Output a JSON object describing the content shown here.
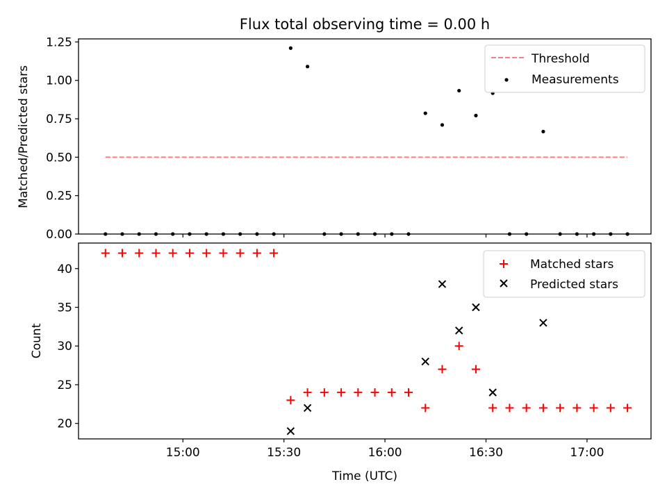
{
  "figure": {
    "title": "Flux total observing time = 0.00 h",
    "xlabel": "Time (UTC)",
    "xticks": [
      {
        "t": 900,
        "label": "15:00"
      },
      {
        "t": 930,
        "label": "15:30"
      },
      {
        "t": 960,
        "label": "16:00"
      },
      {
        "t": 990,
        "label": "16:30"
      },
      {
        "t": 1020,
        "label": "17:00"
      }
    ],
    "xlim": [
      869,
      1039
    ]
  },
  "chart_data": [
    {
      "type": "scatter",
      "ylabel": "Matched/Predicted stars",
      "ylim": [
        0,
        1.27
      ],
      "yticks": [
        "0.00",
        "0.25",
        "0.50",
        "0.75",
        "1.00",
        "1.25"
      ],
      "legend_position": "top-right",
      "threshold": {
        "name": "Threshold",
        "value": 0.5,
        "x_range": [
          877,
          1032
        ],
        "color": "#ff7f7f"
      },
      "series": [
        {
          "name": "Measurements",
          "color": "#000000",
          "points": [
            [
              877,
              0
            ],
            [
              882,
              0
            ],
            [
              887,
              0
            ],
            [
              892,
              0
            ],
            [
              897,
              0
            ],
            [
              902,
              0
            ],
            [
              907,
              0
            ],
            [
              912,
              0
            ],
            [
              917,
              0
            ],
            [
              922,
              0
            ],
            [
              927,
              0
            ],
            [
              932,
              1.21
            ],
            [
              937,
              1.09
            ],
            [
              942,
              0
            ],
            [
              947,
              0
            ],
            [
              952,
              0
            ],
            [
              957,
              0
            ],
            [
              962,
              0
            ],
            [
              967,
              0
            ],
            [
              972,
              0.786
            ],
            [
              977,
              0.71
            ],
            [
              982,
              0.933
            ],
            [
              987,
              0.771
            ],
            [
              992,
              0.917
            ],
            [
              997,
              0
            ],
            [
              1002,
              0
            ],
            [
              1007,
              0.667
            ],
            [
              1012,
              0
            ],
            [
              1017,
              0
            ],
            [
              1022,
              0
            ],
            [
              1027,
              0
            ],
            [
              1032,
              0
            ]
          ]
        }
      ]
    },
    {
      "type": "scatter",
      "ylabel": "Count",
      "ylim": [
        18,
        43.3
      ],
      "yticks": [
        "20",
        "25",
        "30",
        "35",
        "40"
      ],
      "legend_position": "top-right",
      "series": [
        {
          "name": "Matched stars",
          "marker": "plus",
          "color": "#ff0000",
          "points": [
            [
              877,
              42
            ],
            [
              882,
              42
            ],
            [
              887,
              42
            ],
            [
              892,
              42
            ],
            [
              897,
              42
            ],
            [
              902,
              42
            ],
            [
              907,
              42
            ],
            [
              912,
              42
            ],
            [
              917,
              42
            ],
            [
              922,
              42
            ],
            [
              927,
              42
            ],
            [
              932,
              23
            ],
            [
              937,
              24
            ],
            [
              942,
              24
            ],
            [
              947,
              24
            ],
            [
              952,
              24
            ],
            [
              957,
              24
            ],
            [
              962,
              24
            ],
            [
              967,
              24
            ],
            [
              972,
              22
            ],
            [
              977,
              27
            ],
            [
              982,
              30
            ],
            [
              987,
              27
            ],
            [
              992,
              22
            ],
            [
              997,
              22
            ],
            [
              1002,
              22
            ],
            [
              1007,
              22
            ],
            [
              1012,
              22
            ],
            [
              1017,
              22
            ],
            [
              1022,
              22
            ],
            [
              1027,
              22
            ],
            [
              1032,
              22
            ]
          ]
        },
        {
          "name": "Predicted stars",
          "marker": "x",
          "color": "#000000",
          "points": [
            [
              932,
              19
            ],
            [
              937,
              22
            ],
            [
              972,
              28
            ],
            [
              977,
              38
            ],
            [
              982,
              32
            ],
            [
              987,
              35
            ],
            [
              992,
              24
            ],
            [
              1007,
              33
            ]
          ]
        }
      ]
    }
  ]
}
